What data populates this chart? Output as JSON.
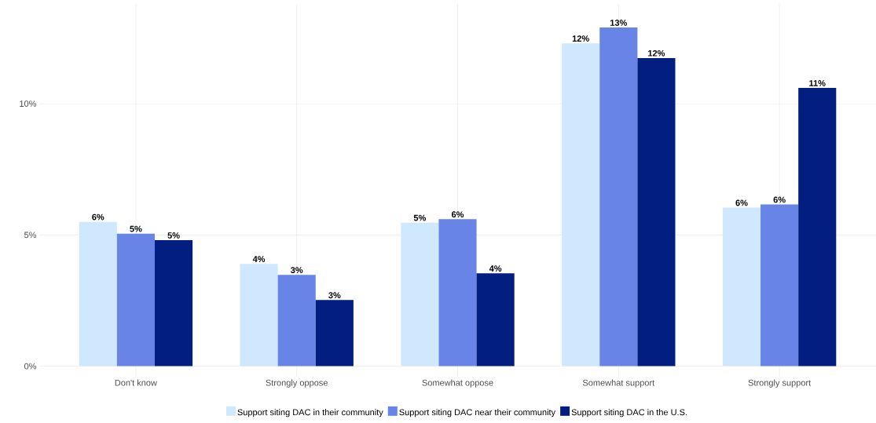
{
  "chart_data": {
    "type": "bar",
    "categories": [
      "Don't know",
      "Strongly oppose",
      "Somewhat oppose",
      "Somewhat support",
      "Strongly support"
    ],
    "series": [
      {
        "name": "Support siting DAC in their community",
        "color": "#cfe8fd",
        "values": [
          5.5,
          3.9,
          5.47,
          12.3,
          6.04
        ],
        "value_labels": [
          "6%",
          "4%",
          "5%",
          "12%",
          "6%"
        ]
      },
      {
        "name": "Support siting DAC near their community",
        "color": "#6784e6",
        "values": [
          5.05,
          3.48,
          5.6,
          12.9,
          6.16
        ],
        "value_labels": [
          "5%",
          "3%",
          "6%",
          "13%",
          "6%"
        ]
      },
      {
        "name": "Support siting DAC in the U.S.",
        "color": "#021e80",
        "values": [
          4.8,
          2.52,
          3.54,
          11.74,
          10.6
        ],
        "value_labels": [
          "5%",
          "3%",
          "4%",
          "12%",
          "11%"
        ]
      }
    ],
    "ylim": [
      -0.4,
      13.8
    ],
    "yticks": [
      {
        "value": 0,
        "label": "0%"
      },
      {
        "value": 5,
        "label": "5%"
      },
      {
        "value": 10,
        "label": "10%"
      }
    ],
    "grid": true,
    "legend": "bottom"
  }
}
